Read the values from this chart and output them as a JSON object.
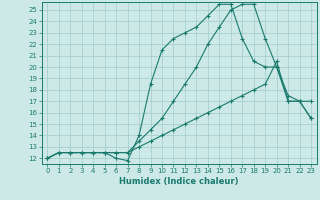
{
  "xlabel": "Humidex (Indice chaleur)",
  "xlim": [
    -0.5,
    23.5
  ],
  "ylim": [
    11.5,
    25.7
  ],
  "xticks": [
    0,
    1,
    2,
    3,
    4,
    5,
    6,
    7,
    8,
    9,
    10,
    11,
    12,
    13,
    14,
    15,
    16,
    17,
    18,
    19,
    20,
    21,
    22,
    23
  ],
  "yticks": [
    12,
    13,
    14,
    15,
    16,
    17,
    18,
    19,
    20,
    21,
    22,
    23,
    24,
    25
  ],
  "bg_color": "#cce9e7",
  "grid_color": "#a0ccc9",
  "line_color": "#1a7a6e",
  "curve1_x": [
    0,
    1,
    2,
    3,
    4,
    5,
    6,
    7,
    8,
    9,
    10,
    11,
    12,
    13,
    14,
    15,
    16,
    17,
    18,
    19,
    20,
    21,
    22,
    23
  ],
  "curve1_y": [
    12,
    12.5,
    12.5,
    12.5,
    12.5,
    12.5,
    12.5,
    12.5,
    13.5,
    14.5,
    15.5,
    17,
    18.5,
    20,
    22,
    23.5,
    25,
    25.5,
    25.5,
    22.5,
    20.0,
    17.0,
    17.0,
    15.5
  ],
  "curve2_x": [
    0,
    1,
    2,
    3,
    4,
    5,
    6,
    7,
    8,
    9,
    10,
    11,
    12,
    13,
    14,
    15,
    16,
    17,
    18,
    19,
    20,
    21,
    22,
    23
  ],
  "curve2_y": [
    12,
    12.5,
    12.5,
    12.5,
    12.5,
    12.5,
    12.0,
    11.8,
    14.0,
    18.5,
    21.5,
    22.5,
    23.0,
    23.5,
    24.5,
    25.5,
    25.5,
    22.5,
    20.5,
    20.0,
    20.0,
    17.5,
    17.0,
    17.0
  ],
  "curve3_x": [
    0,
    1,
    2,
    3,
    4,
    5,
    6,
    7,
    8,
    9,
    10,
    11,
    12,
    13,
    14,
    15,
    16,
    17,
    18,
    19,
    20,
    21,
    22,
    23
  ],
  "curve3_y": [
    12,
    12.5,
    12.5,
    12.5,
    12.5,
    12.5,
    12.5,
    12.5,
    13.0,
    13.5,
    14.0,
    14.5,
    15.0,
    15.5,
    16.0,
    16.5,
    17.0,
    17.5,
    18.0,
    18.5,
    20.5,
    17.0,
    17.0,
    15.5
  ]
}
